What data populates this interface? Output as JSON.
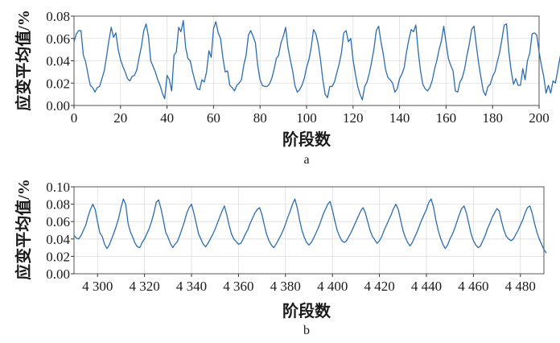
{
  "chart_data": [
    {
      "type": "line",
      "panel_label": "a",
      "xlabel": "阶段数",
      "ylabel": "应变平均值/%",
      "xlim": [
        0,
        200
      ],
      "ylim": [
        0.0,
        0.08
      ],
      "xticks": [
        0,
        20,
        40,
        60,
        80,
        100,
        120,
        140,
        160,
        180,
        200
      ],
      "xtick_labels": [
        "0",
        "20",
        "40",
        "60",
        "80",
        "100",
        "120",
        "140",
        "160",
        "180",
        "200"
      ],
      "yticks": [
        0.0,
        0.02,
        0.04,
        0.06,
        0.08
      ],
      "ytick_labels": [
        "0.00",
        "0.02",
        "0.04",
        "0.06",
        "0.08"
      ],
      "grid": true,
      "line_color": "#2b6cb0",
      "x_start": 0,
      "x_step": 1,
      "values": [
        0.057,
        0.064,
        0.067,
        0.067,
        0.045,
        0.039,
        0.028,
        0.018,
        0.016,
        0.012,
        0.016,
        0.017,
        0.024,
        0.031,
        0.044,
        0.058,
        0.07,
        0.061,
        0.065,
        0.05,
        0.041,
        0.035,
        0.03,
        0.024,
        0.022,
        0.026,
        0.027,
        0.032,
        0.043,
        0.053,
        0.067,
        0.073,
        0.062,
        0.04,
        0.035,
        0.03,
        0.023,
        0.018,
        0.011,
        0.006,
        0.027,
        0.023,
        0.013,
        0.045,
        0.048,
        0.07,
        0.066,
        0.076,
        0.052,
        0.042,
        0.04,
        0.03,
        0.022,
        0.015,
        0.014,
        0.023,
        0.021,
        0.03,
        0.049,
        0.043,
        0.069,
        0.075,
        0.065,
        0.06,
        0.043,
        0.03,
        0.031,
        0.018,
        0.016,
        0.013,
        0.018,
        0.02,
        0.023,
        0.036,
        0.045,
        0.063,
        0.067,
        0.062,
        0.056,
        0.036,
        0.023,
        0.018,
        0.017,
        0.017,
        0.019,
        0.024,
        0.032,
        0.042,
        0.045,
        0.056,
        0.062,
        0.07,
        0.052,
        0.041,
        0.031,
        0.018,
        0.012,
        0.014,
        0.018,
        0.024,
        0.034,
        0.041,
        0.052,
        0.068,
        0.064,
        0.055,
        0.041,
        0.023,
        0.01,
        0.007,
        0.017,
        0.017,
        0.021,
        0.029,
        0.037,
        0.047,
        0.065,
        0.067,
        0.057,
        0.06,
        0.041,
        0.028,
        0.017,
        0.01,
        0.005,
        0.017,
        0.021,
        0.029,
        0.039,
        0.051,
        0.067,
        0.071,
        0.057,
        0.046,
        0.032,
        0.025,
        0.023,
        0.02,
        0.012,
        0.015,
        0.024,
        0.028,
        0.034,
        0.048,
        0.059,
        0.068,
        0.066,
        0.072,
        0.049,
        0.031,
        0.019,
        0.015,
        0.013,
        0.016,
        0.022,
        0.032,
        0.04,
        0.05,
        0.058,
        0.071,
        0.056,
        0.042,
        0.036,
        0.031,
        0.013,
        0.012,
        0.021,
        0.025,
        0.033,
        0.045,
        0.055,
        0.068,
        0.071,
        0.054,
        0.038,
        0.025,
        0.013,
        0.009,
        0.017,
        0.019,
        0.026,
        0.03,
        0.039,
        0.047,
        0.059,
        0.072,
        0.073,
        0.048,
        0.031,
        0.019,
        0.024,
        0.018,
        0.018,
        0.033,
        0.023,
        0.04,
        0.047,
        0.064,
        0.065,
        0.063,
        0.048,
        0.036,
        0.026,
        0.011,
        0.018,
        0.011,
        0.022,
        0.02,
        0.031,
        0.043,
        0.052,
        0.066
      ]
    },
    {
      "type": "line",
      "panel_label": "b",
      "xlabel": "阶段数",
      "ylabel": "应变平均值/%",
      "xlim": [
        4290,
        4490
      ],
      "ylim": [
        0.0,
        0.1
      ],
      "xticks": [
        4300,
        4320,
        4340,
        4360,
        4380,
        4400,
        4420,
        4440,
        4460,
        4480
      ],
      "xtick_labels": [
        "4 300",
        "4 320",
        "4 340",
        "4 360",
        "4 380",
        "4 400",
        "4 420",
        "4 440",
        "4 460",
        "4 480"
      ],
      "yticks": [
        0.0,
        0.02,
        0.04,
        0.06,
        0.08,
        0.1
      ],
      "ytick_labels": [
        "0.00",
        "0.02",
        "0.04",
        "0.06",
        "0.08",
        "0.10"
      ],
      "grid": true,
      "line_color": "#2b6cb0",
      "x_start": 4290,
      "x_step": 1,
      "values": [
        0.044,
        0.041,
        0.04,
        0.044,
        0.05,
        0.056,
        0.066,
        0.074,
        0.08,
        0.074,
        0.06,
        0.047,
        0.043,
        0.034,
        0.029,
        0.033,
        0.04,
        0.047,
        0.055,
        0.064,
        0.076,
        0.086,
        0.08,
        0.058,
        0.048,
        0.042,
        0.035,
        0.031,
        0.03,
        0.036,
        0.04,
        0.046,
        0.052,
        0.06,
        0.07,
        0.082,
        0.085,
        0.075,
        0.062,
        0.048,
        0.042,
        0.035,
        0.03,
        0.034,
        0.037,
        0.044,
        0.052,
        0.06,
        0.07,
        0.076,
        0.08,
        0.07,
        0.058,
        0.046,
        0.04,
        0.034,
        0.031,
        0.035,
        0.04,
        0.045,
        0.051,
        0.058,
        0.065,
        0.072,
        0.078,
        0.068,
        0.056,
        0.046,
        0.04,
        0.037,
        0.034,
        0.035,
        0.04,
        0.046,
        0.051,
        0.058,
        0.064,
        0.07,
        0.074,
        0.076,
        0.068,
        0.056,
        0.045,
        0.038,
        0.033,
        0.03,
        0.034,
        0.039,
        0.044,
        0.05,
        0.057,
        0.065,
        0.072,
        0.08,
        0.086,
        0.076,
        0.062,
        0.05,
        0.042,
        0.036,
        0.033,
        0.036,
        0.041,
        0.047,
        0.053,
        0.06,
        0.068,
        0.074,
        0.08,
        0.083,
        0.073,
        0.061,
        0.05,
        0.043,
        0.038,
        0.036,
        0.038,
        0.043,
        0.048,
        0.054,
        0.06,
        0.066,
        0.072,
        0.076,
        0.07,
        0.06,
        0.05,
        0.043,
        0.039,
        0.035,
        0.038,
        0.043,
        0.05,
        0.056,
        0.062,
        0.068,
        0.075,
        0.08,
        0.074,
        0.062,
        0.05,
        0.042,
        0.036,
        0.032,
        0.036,
        0.042,
        0.048,
        0.055,
        0.062,
        0.068,
        0.074,
        0.082,
        0.086,
        0.077,
        0.062,
        0.05,
        0.041,
        0.034,
        0.029,
        0.033,
        0.04,
        0.045,
        0.052,
        0.06,
        0.068,
        0.075,
        0.078,
        0.07,
        0.058,
        0.046,
        0.038,
        0.033,
        0.03,
        0.032,
        0.038,
        0.044,
        0.052,
        0.058,
        0.065,
        0.07,
        0.075,
        0.072,
        0.06,
        0.05,
        0.043,
        0.04,
        0.038,
        0.04,
        0.045,
        0.05,
        0.056,
        0.062,
        0.07,
        0.076,
        0.078,
        0.07,
        0.058,
        0.048,
        0.04,
        0.034,
        0.028,
        0.024
      ]
    }
  ]
}
